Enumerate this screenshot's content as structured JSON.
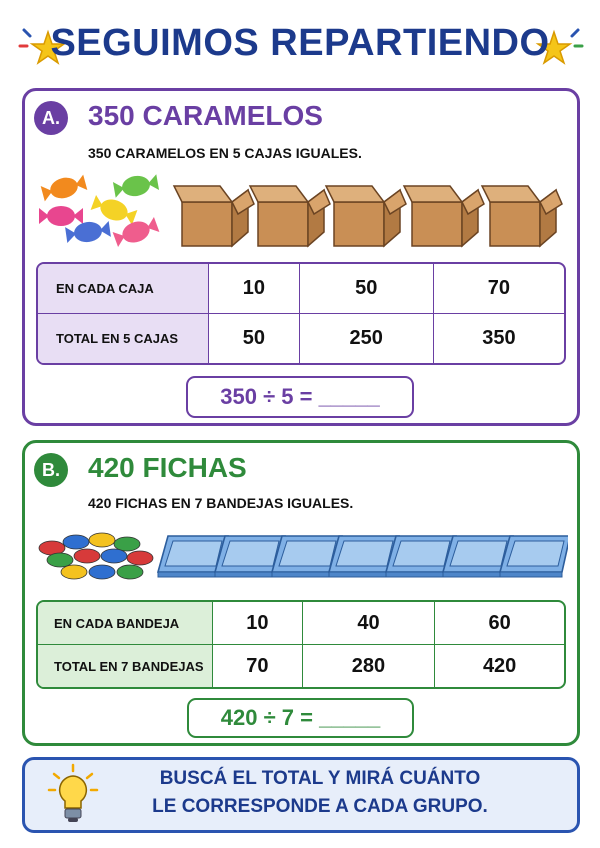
{
  "header": {
    "title": "SEGUIMOS REPARTIENDO"
  },
  "sections": [
    {
      "letter": "A.",
      "title": "350 CARAMELOS",
      "subtitle": "350 CARAMELOS EN 5 CAJAS IGUALES.",
      "table": {
        "rows": [
          [
            "EN CADA CAJA",
            "10",
            "50",
            "70"
          ],
          [
            "TOTAL EN 5 CAJAS",
            "50",
            "250",
            "350"
          ]
        ]
      },
      "equation": "350 ÷ 5 = _____"
    },
    {
      "letter": "B.",
      "title": "420 FICHAS",
      "subtitle": "420 FICHAS EN 7 BANDEJAS IGUALES.",
      "table": {
        "rows": [
          [
            "EN CADA BANDEJA",
            "10",
            "40",
            "60"
          ],
          [
            "TOTAL EN 7 BANDEJAS",
            "70",
            "280",
            "420"
          ]
        ]
      },
      "equation": "420 ÷ 7 = _____"
    }
  ],
  "tip": {
    "lines": [
      "BUSCÁ EL TOTAL Y MIRÁ CUÁNTO",
      "LE CORRESPONDE A CADA GRUPO."
    ]
  }
}
